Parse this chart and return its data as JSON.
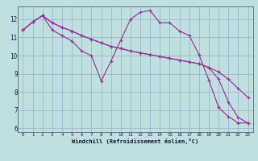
{
  "xlabel": "Windchill (Refroidissement éolien,°C)",
  "bg_color": "#c0e0e0",
  "grid_color": "#99aacc",
  "line_color": "#993399",
  "xlim": [
    -0.5,
    23.5
  ],
  "ylim": [
    5.8,
    12.7
  ],
  "yticks": [
    6,
    7,
    8,
    9,
    10,
    11,
    12
  ],
  "xticks": [
    0,
    1,
    2,
    3,
    4,
    5,
    6,
    7,
    8,
    9,
    10,
    11,
    12,
    13,
    14,
    15,
    16,
    17,
    18,
    19,
    20,
    21,
    22,
    23
  ],
  "line1_x": [
    0,
    1,
    2,
    3,
    4,
    5,
    6,
    7,
    8,
    9,
    10,
    11,
    12,
    13,
    14,
    15,
    16,
    17,
    18,
    19,
    20,
    21,
    22,
    23
  ],
  "line1_y": [
    11.4,
    11.85,
    12.2,
    11.8,
    11.55,
    11.35,
    11.1,
    10.9,
    10.7,
    10.5,
    10.4,
    10.25,
    10.15,
    10.05,
    9.95,
    9.85,
    9.75,
    9.65,
    9.55,
    9.35,
    9.1,
    8.7,
    8.2,
    7.7
  ],
  "line2_x": [
    0,
    1,
    2,
    3,
    4,
    5,
    6,
    7,
    8,
    9,
    10,
    11,
    12,
    13,
    14,
    15,
    16,
    17,
    18,
    19,
    20,
    21,
    22,
    23
  ],
  "line2_y": [
    11.4,
    11.85,
    12.2,
    11.4,
    11.1,
    10.8,
    10.25,
    10.0,
    8.6,
    9.7,
    10.85,
    12.0,
    12.38,
    12.48,
    11.8,
    11.8,
    11.35,
    11.1,
    10.05,
    8.65,
    7.15,
    6.65,
    6.3,
    6.3
  ],
  "line3_x": [
    0,
    1,
    2,
    3,
    4,
    5,
    6,
    7,
    8,
    9,
    10,
    11,
    12,
    13,
    14,
    15,
    16,
    17,
    18,
    19,
    20,
    21,
    22,
    23
  ],
  "line3_y": [
    11.4,
    11.85,
    12.2,
    11.8,
    11.55,
    11.35,
    11.1,
    10.9,
    10.7,
    10.5,
    10.4,
    10.25,
    10.15,
    10.05,
    9.95,
    9.85,
    9.75,
    9.65,
    9.55,
    9.35,
    8.7,
    7.45,
    6.6,
    6.3
  ]
}
